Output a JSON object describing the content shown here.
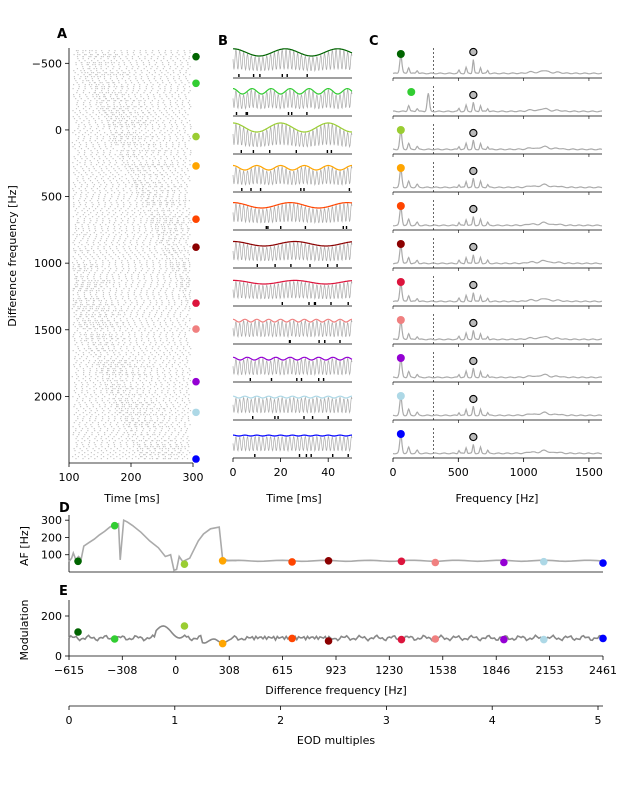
{
  "panel_letters": {
    "a": "A",
    "b": "B",
    "c": "C",
    "d": "D",
    "e": "E"
  },
  "axis_labels": {
    "a_y": "Difference frequency [Hz]",
    "a_x": "Time [ms]",
    "b_x": "Time [ms]",
    "c_x": "Frequency [Hz]",
    "d_y": "AF [Hz]",
    "e_y": "Modulation",
    "e_x": "Difference frequency [Hz]",
    "f_x": "EOD multiples"
  },
  "colors": {
    "trace_gray": "#aaaaaa",
    "rate_gray": "#888888",
    "dot_gray": "#c8c8c8",
    "markers": [
      "#006400",
      "#32cd32",
      "#9acd32",
      "#ffa500",
      "#ff4500",
      "#8b0000",
      "#dc143c",
      "#f08080",
      "#9400d3",
      "#add8e6",
      "#0000ff"
    ]
  },
  "chart_data": [
    {
      "panel": "A",
      "type": "scatter",
      "description_source": "raster of spike times per difference frequency",
      "xlim": [
        100,
        300
      ],
      "ylim": [
        2500,
        -615
      ],
      "xticks": [
        "100",
        "200",
        "300"
      ],
      "yticks": [
        "−500",
        "0",
        "500",
        "1000",
        "1500",
        "2000"
      ],
      "ytick_values": [
        -500,
        0,
        500,
        1000,
        1500,
        2000
      ],
      "xtick_values": [
        100,
        200,
        300
      ],
      "marker_df": [
        -550,
        -350,
        50,
        270,
        670,
        880,
        1300,
        1495,
        1890,
        2120,
        2470
      ]
    },
    {
      "panel": "B",
      "type": "line",
      "xlim": [
        0,
        50
      ],
      "xticks": [
        "0",
        "20",
        "40"
      ],
      "xtick_values": [
        0,
        20,
        40
      ],
      "rows": 11
    },
    {
      "panel": "C",
      "type": "line",
      "xlim": [
        0,
        1600
      ],
      "xticks": [
        "0",
        "500",
        "1000",
        "1500"
      ],
      "xtick_values": [
        0,
        500,
        1000,
        1500
      ],
      "dashed_x": 310,
      "ring_x": 615,
      "rows": 11
    },
    {
      "panel": "D",
      "type": "line",
      "ylim": [
        0,
        330
      ],
      "yticks": [
        "100",
        "200",
        "300"
      ],
      "ytick_values": [
        100,
        200,
        300
      ],
      "xlim": [
        -615,
        2461
      ],
      "gray_x": [
        -615,
        -600,
        -590,
        -575,
        -560,
        -545,
        -530,
        -500,
        -470,
        -440,
        -410,
        -380,
        -350,
        -330,
        -320,
        -300,
        -280,
        -250,
        -200,
        -150,
        -100,
        -60,
        -45,
        -30,
        -10,
        5,
        20,
        40,
        60,
        80,
        100,
        130,
        160,
        200,
        250,
        270,
        290,
        300,
        320,
        350
      ],
      "gray_y": [
        60,
        80,
        110,
        70,
        90,
        75,
        150,
        170,
        190,
        215,
        235,
        260,
        275,
        280,
        70,
        300,
        290,
        270,
        230,
        180,
        140,
        90,
        95,
        100,
        10,
        15,
        90,
        60,
        70,
        80,
        120,
        180,
        220,
        250,
        260,
        75,
        70,
        68,
        67,
        66
      ],
      "line_x": [
        290,
        2461
      ],
      "line_y": 65,
      "points_x": [
        -563,
        -352,
        50,
        270,
        670,
        880,
        1300,
        1495,
        1890,
        2120,
        2461
      ],
      "points_y": [
        62,
        268,
        45,
        65,
        58,
        65,
        62,
        55,
        55,
        60,
        52
      ]
    },
    {
      "panel": "E",
      "type": "line",
      "ylim": [
        0,
        280
      ],
      "yticks": [
        "0",
        "200"
      ],
      "ytick_values": [
        0,
        200
      ],
      "xlim": [
        -615,
        2461
      ],
      "xticks": [
        "−615",
        "−308",
        "0",
        "308",
        "615",
        "923",
        "1230",
        "1538",
        "1846",
        "2153",
        "2461"
      ],
      "xtick_values": [
        -615,
        -308,
        0,
        308,
        615,
        923,
        1230,
        1538,
        1846,
        2153,
        2461
      ],
      "points_x": [
        -563,
        -352,
        50,
        270,
        670,
        880,
        1300,
        1495,
        1890,
        2120,
        2461
      ],
      "points_y": [
        120,
        85,
        150,
        62,
        88,
        75,
        82,
        85,
        82,
        82,
        88
      ]
    },
    {
      "panel": "F",
      "type": "line",
      "xlim": [
        0,
        5
      ],
      "xticks": [
        "0",
        "1",
        "2",
        "3",
        "4",
        "5"
      ],
      "xtick_values": [
        0,
        1,
        2,
        3,
        4,
        5
      ]
    }
  ]
}
